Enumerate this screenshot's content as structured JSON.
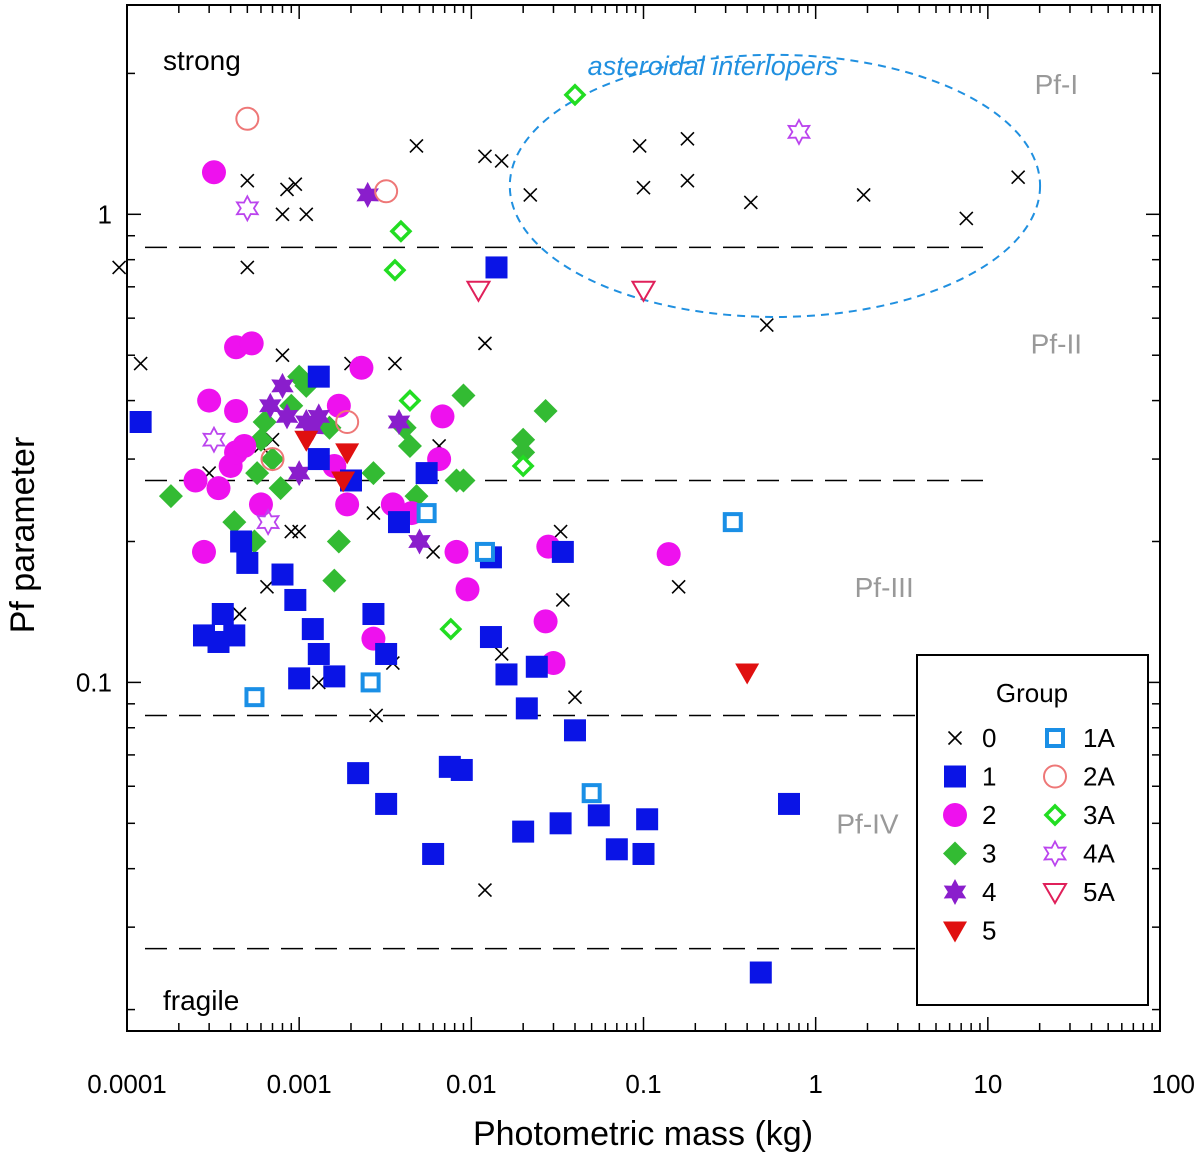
{
  "chart_data": {
    "type": "scatter",
    "xscale": "log",
    "yscale": "log",
    "xlim": [
      0.0001,
      100
    ],
    "ylim": [
      0.018,
      2.8
    ],
    "xlabel": "Photometric mass (kg)",
    "ylabel": "Pf parameter",
    "x_ticks": [
      {
        "value": 0.0001,
        "label": "0.0001"
      },
      {
        "value": 0.001,
        "label": "0.001"
      },
      {
        "value": 0.01,
        "label": "0.01"
      },
      {
        "value": 0.1,
        "label": "0.1"
      },
      {
        "value": 1,
        "label": "1"
      },
      {
        "value": 10,
        "label": "10"
      },
      {
        "value": 100,
        "label": "100"
      }
    ],
    "y_ticks": [
      {
        "value": 0.1,
        "label": "0.1"
      },
      {
        "value": 1,
        "label": "1"
      }
    ],
    "boundaries": [
      0.85,
      0.27,
      0.085,
      0.027
    ],
    "region_labels": [
      {
        "text": "Pf-I",
        "x": 25,
        "y": 1.9
      },
      {
        "text": "Pf-II",
        "x": 25,
        "y": 0.53
      },
      {
        "text": "Pf-III",
        "x": 2.5,
        "y": 0.16
      },
      {
        "text": "Pf-IV",
        "x": 2,
        "y": 0.05
      }
    ],
    "corner_labels": {
      "top": "strong",
      "bottom": "fragile"
    },
    "interlopers": {
      "label": "asteroidal interlopers",
      "color": "#2090e0",
      "cx": 0.58,
      "cy": 1.15,
      "rx_decades": 1.54,
      "ry_decades": 0.28
    },
    "legend": {
      "title": "Group",
      "entries": [
        "0",
        "1",
        "2",
        "3",
        "4",
        "5",
        "1A",
        "2A",
        "3A",
        "4A",
        "5A"
      ]
    },
    "series": [
      {
        "name": "0",
        "marker": "x",
        "color": "#000000",
        "points": [
          [
            9e-05,
            0.77
          ],
          [
            0.00012,
            0.48
          ],
          [
            0.0005,
            1.18
          ],
          [
            0.0005,
            0.77
          ],
          [
            0.00085,
            1.13
          ],
          [
            0.00095,
            1.16
          ],
          [
            0.0008,
            1.0
          ],
          [
            0.0011,
            1.0
          ],
          [
            0.0048,
            1.4
          ],
          [
            0.012,
            1.33
          ],
          [
            0.015,
            1.3
          ],
          [
            0.022,
            1.1
          ],
          [
            0.095,
            1.4
          ],
          [
            0.1,
            1.14
          ],
          [
            0.18,
            1.45
          ],
          [
            0.18,
            1.18
          ],
          [
            0.42,
            1.06
          ],
          [
            1.9,
            1.1
          ],
          [
            7.5,
            0.98
          ],
          [
            15,
            1.2
          ],
          [
            0.52,
            0.58
          ],
          [
            0.0008,
            0.5
          ],
          [
            0.002,
            0.48
          ],
          [
            0.0036,
            0.48
          ],
          [
            0.012,
            0.53
          ],
          [
            0.0003,
            0.28
          ],
          [
            0.0006,
            0.32
          ],
          [
            0.0007,
            0.33
          ],
          [
            0.0009,
            0.21
          ],
          [
            0.001,
            0.21
          ],
          [
            0.0027,
            0.23
          ],
          [
            0.006,
            0.19
          ],
          [
            0.0065,
            0.32
          ],
          [
            0.033,
            0.21
          ],
          [
            0.00045,
            0.14
          ],
          [
            0.00065,
            0.16
          ],
          [
            0.0013,
            0.1
          ],
          [
            0.0028,
            0.085
          ],
          [
            0.0035,
            0.11
          ],
          [
            0.015,
            0.115
          ],
          [
            0.034,
            0.15
          ],
          [
            0.04,
            0.093
          ],
          [
            0.16,
            0.16
          ],
          [
            0.012,
            0.036
          ]
        ]
      },
      {
        "name": "1",
        "marker": "square",
        "color": "#0a14e6",
        "points": [
          [
            0.00012,
            0.36
          ],
          [
            0.00028,
            0.126
          ],
          [
            0.00034,
            0.122
          ],
          [
            0.00036,
            0.14
          ],
          [
            0.00042,
            0.126
          ],
          [
            0.00046,
            0.2
          ],
          [
            0.0005,
            0.18
          ],
          [
            0.0008,
            0.17
          ],
          [
            0.00095,
            0.15
          ],
          [
            0.001,
            0.102
          ],
          [
            0.0012,
            0.13
          ],
          [
            0.0013,
            0.115
          ],
          [
            0.0016,
            0.103
          ],
          [
            0.0013,
            0.3
          ],
          [
            0.002,
            0.27
          ],
          [
            0.0013,
            0.45
          ],
          [
            0.0027,
            0.14
          ],
          [
            0.0032,
            0.115
          ],
          [
            0.0038,
            0.22
          ],
          [
            0.0055,
            0.28
          ],
          [
            0.013,
            0.185
          ],
          [
            0.013,
            0.125
          ],
          [
            0.016,
            0.104
          ],
          [
            0.021,
            0.088
          ],
          [
            0.024,
            0.108
          ],
          [
            0.034,
            0.19
          ],
          [
            0.04,
            0.079
          ],
          [
            0.0075,
            0.066
          ],
          [
            0.0088,
            0.065
          ],
          [
            0.0022,
            0.064
          ],
          [
            0.0032,
            0.055
          ],
          [
            0.006,
            0.043
          ],
          [
            0.02,
            0.048
          ],
          [
            0.033,
            0.05
          ],
          [
            0.055,
            0.052
          ],
          [
            0.07,
            0.044
          ],
          [
            0.105,
            0.051
          ],
          [
            0.1,
            0.043
          ],
          [
            0.7,
            0.055
          ],
          [
            0.48,
            0.024
          ],
          [
            0.014,
            0.77
          ]
        ]
      },
      {
        "name": "2",
        "marker": "circle",
        "color": "#ee11ee",
        "points": [
          [
            0.00032,
            1.23
          ],
          [
            0.00043,
            0.52
          ],
          [
            0.00053,
            0.53
          ],
          [
            0.0003,
            0.4
          ],
          [
            0.00043,
            0.38
          ],
          [
            0.00025,
            0.27
          ],
          [
            0.00034,
            0.26
          ],
          [
            0.0004,
            0.29
          ],
          [
            0.00043,
            0.31
          ],
          [
            0.00048,
            0.32
          ],
          [
            0.0006,
            0.24
          ],
          [
            0.00028,
            0.19
          ],
          [
            0.0017,
            0.39
          ],
          [
            0.0016,
            0.29
          ],
          [
            0.0019,
            0.24
          ],
          [
            0.0023,
            0.47
          ],
          [
            0.0035,
            0.24
          ],
          [
            0.0045,
            0.23
          ],
          [
            0.0068,
            0.37
          ],
          [
            0.0065,
            0.3
          ],
          [
            0.0082,
            0.19
          ],
          [
            0.0095,
            0.158
          ],
          [
            0.028,
            0.195
          ],
          [
            0.027,
            0.135
          ],
          [
            0.03,
            0.11
          ],
          [
            0.0027,
            0.124
          ],
          [
            0.14,
            0.188
          ]
        ]
      },
      {
        "name": "3",
        "marker": "diamond",
        "color": "#33bb33",
        "points": [
          [
            0.00018,
            0.25
          ],
          [
            0.00042,
            0.22
          ],
          [
            0.00055,
            0.2
          ],
          [
            0.00063,
            0.36
          ],
          [
            0.0007,
            0.3
          ],
          [
            0.00078,
            0.26
          ],
          [
            0.0009,
            0.39
          ],
          [
            0.001,
            0.45
          ],
          [
            0.0011,
            0.43
          ],
          [
            0.0015,
            0.35
          ],
          [
            0.0017,
            0.2
          ],
          [
            0.0016,
            0.165
          ],
          [
            0.0027,
            0.28
          ],
          [
            0.0041,
            0.35
          ],
          [
            0.0044,
            0.32
          ],
          [
            0.0048,
            0.25
          ],
          [
            0.0082,
            0.27
          ],
          [
            0.009,
            0.27
          ],
          [
            0.009,
            0.41
          ],
          [
            0.02,
            0.31
          ],
          [
            0.02,
            0.33
          ],
          [
            0.027,
            0.38
          ],
          [
            0.00057,
            0.28
          ],
          [
            0.0006,
            0.33
          ]
        ]
      },
      {
        "name": "4",
        "marker": "star6",
        "color": "#8a1ecc",
        "points": [
          [
            0.0025,
            1.1
          ],
          [
            0.00068,
            0.39
          ],
          [
            0.0008,
            0.43
          ],
          [
            0.00085,
            0.37
          ],
          [
            0.001,
            0.28
          ],
          [
            0.0011,
            0.36
          ],
          [
            0.0012,
            0.35
          ],
          [
            0.0013,
            0.37
          ],
          [
            0.0038,
            0.36
          ],
          [
            0.005,
            0.2
          ]
        ]
      },
      {
        "name": "5",
        "marker": "tri-down",
        "color": "#e01010",
        "points": [
          [
            0.0011,
            0.33
          ],
          [
            0.0019,
            0.31
          ],
          [
            0.0018,
            0.27
          ],
          [
            0.4,
            0.105
          ]
        ]
      },
      {
        "name": "1A",
        "marker": "open-square",
        "color": "#1a8fe6",
        "points": [
          [
            0.00055,
            0.093
          ],
          [
            0.0026,
            0.1
          ],
          [
            0.0055,
            0.23
          ],
          [
            0.012,
            0.19
          ],
          [
            0.05,
            0.058
          ],
          [
            0.33,
            0.22
          ]
        ]
      },
      {
        "name": "2A",
        "marker": "open-circle",
        "color": "#ee7777",
        "points": [
          [
            0.0005,
            1.6
          ],
          [
            0.0032,
            1.12
          ],
          [
            0.0007,
            0.3
          ],
          [
            0.0019,
            0.36
          ]
        ]
      },
      {
        "name": "3A",
        "marker": "open-diamond",
        "color": "#22dd22",
        "points": [
          [
            0.04,
            1.8
          ],
          [
            0.0039,
            0.92
          ],
          [
            0.0036,
            0.76
          ],
          [
            0.0044,
            0.4
          ],
          [
            0.0076,
            0.13
          ],
          [
            0.02,
            0.29
          ]
        ]
      },
      {
        "name": "4A",
        "marker": "open-star6",
        "color": "#bb44ee",
        "points": [
          [
            0.8,
            1.5
          ],
          [
            0.0005,
            1.03
          ],
          [
            0.00032,
            0.33
          ],
          [
            0.00066,
            0.22
          ]
        ]
      },
      {
        "name": "5A",
        "marker": "open-tri-down",
        "color": "#e0205a",
        "points": [
          [
            0.011,
            0.69
          ],
          [
            0.1,
            0.69
          ]
        ]
      }
    ]
  }
}
